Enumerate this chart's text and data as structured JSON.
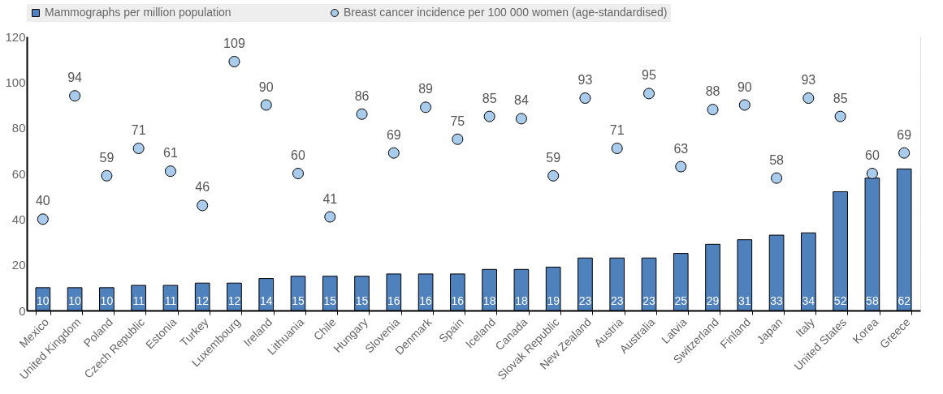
{
  "chart_data": {
    "type": "bar",
    "categories": [
      "Mexico",
      "United Kingdom",
      "Poland",
      "Czech Republic",
      "Estonia",
      "Turkey",
      "Luxembourg",
      "Ireland",
      "Lithuania",
      "Chile",
      "Hungary",
      "Slovenia",
      "Denmark",
      "Spain",
      "Iceland",
      "Canada",
      "Slovak Republic",
      "New Zealand",
      "Austria",
      "Australia",
      "Latvia",
      "Switzerland",
      "Finland",
      "Japan",
      "Italy",
      "United States",
      "Korea",
      "Greece"
    ],
    "series": [
      {
        "name": "Mammographs per million population",
        "color": "#4f81bd",
        "values": [
          10,
          10,
          10,
          11,
          11,
          12,
          12,
          14,
          15,
          15,
          15,
          16,
          16,
          16,
          18,
          18,
          19,
          23,
          23,
          23,
          25,
          29,
          31,
          33,
          34,
          52,
          58,
          62
        ]
      },
      {
        "name": "Breast cancer incidence per 100 000 women (age-standardised)",
        "type": "scatter",
        "color": "#a9cbec",
        "values": [
          40,
          94,
          59,
          71,
          61,
          46,
          109,
          90,
          60,
          41,
          86,
          69,
          89,
          75,
          85,
          84,
          59,
          93,
          71,
          95,
          63,
          88,
          90,
          58,
          93,
          85,
          60,
          69
        ]
      }
    ],
    "ylim": [
      0,
      120
    ],
    "yticks": [
      0,
      20,
      40,
      60,
      80,
      100,
      120
    ],
    "grid": true,
    "legend": "top",
    "data_labels": true,
    "marker": "circle"
  }
}
